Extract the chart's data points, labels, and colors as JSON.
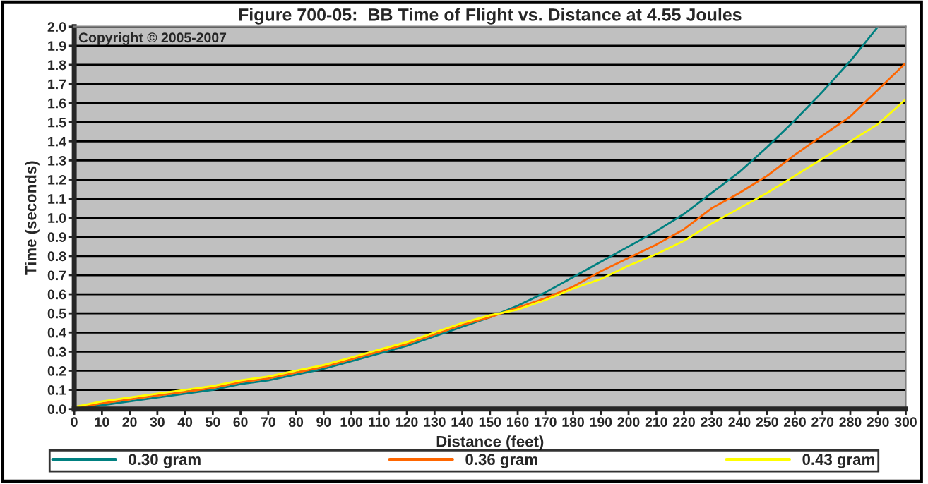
{
  "chart_data": {
    "type": "line",
    "title": "Figure 700-05:  BB Time of Flight vs. Distance at 4.55 Joules",
    "xlabel": "Distance (feet)",
    "ylabel": "Time (seconds)",
    "annotations": [
      "Copyright © 2005-2007"
    ],
    "x": [
      0,
      10,
      20,
      30,
      40,
      50,
      60,
      70,
      80,
      90,
      100,
      110,
      120,
      130,
      140,
      150,
      160,
      170,
      180,
      190,
      200,
      210,
      220,
      230,
      240,
      250,
      260,
      270,
      280,
      290,
      300
    ],
    "series": [
      {
        "name": "0.30 gram",
        "color": "#008080",
        "values": [
          0,
          0.02,
          0.04,
          0.06,
          0.08,
          0.1,
          0.13,
          0.15,
          0.18,
          0.21,
          0.25,
          0.29,
          0.33,
          0.38,
          0.43,
          0.48,
          0.54,
          0.61,
          0.69,
          0.77,
          0.85,
          0.93,
          1.02,
          1.13,
          1.24,
          1.37,
          1.51,
          1.66,
          1.82,
          2.0,
          null
        ]
      },
      {
        "name": "0.36 gram",
        "color": "#ff6600",
        "values": [
          0.005,
          0.03,
          0.05,
          0.07,
          0.09,
          0.11,
          0.14,
          0.16,
          0.19,
          0.22,
          0.26,
          0.3,
          0.34,
          0.39,
          0.44,
          0.48,
          0.53,
          0.58,
          0.64,
          0.72,
          0.79,
          0.86,
          0.94,
          1.05,
          1.13,
          1.22,
          1.33,
          1.43,
          1.53,
          1.67,
          1.81
        ]
      },
      {
        "name": "0.43 gram",
        "color": "#ffff00",
        "values": [
          0.01,
          0.04,
          0.06,
          0.08,
          0.1,
          0.12,
          0.15,
          0.17,
          0.2,
          0.23,
          0.27,
          0.31,
          0.35,
          0.4,
          0.45,
          0.49,
          0.52,
          0.57,
          0.63,
          0.68,
          0.75,
          0.81,
          0.88,
          0.97,
          1.05,
          1.13,
          1.22,
          1.31,
          1.4,
          1.49,
          1.62
        ]
      }
    ],
    "xlim": [
      0,
      300
    ],
    "xticks": [
      0,
      10,
      20,
      30,
      40,
      50,
      60,
      70,
      80,
      90,
      100,
      110,
      120,
      130,
      140,
      150,
      160,
      170,
      180,
      190,
      200,
      210,
      220,
      230,
      240,
      250,
      260,
      270,
      280,
      290,
      300
    ],
    "ylim": [
      0,
      2.0
    ],
    "yticks": [
      {
        "value": 0,
        "label": "0.0"
      },
      {
        "value": 0.1,
        "label": "0.1"
      },
      {
        "value": 0.2,
        "label": "0.2"
      },
      {
        "value": 0.3,
        "label": "0.3"
      },
      {
        "value": 0.4,
        "label": "0.4"
      },
      {
        "value": 0.5,
        "label": "0.5"
      },
      {
        "value": 0.6,
        "label": "0.6"
      },
      {
        "value": 0.7,
        "label": "0.7"
      },
      {
        "value": 0.8,
        "label": "0.8"
      },
      {
        "value": 0.9,
        "label": "0.9"
      },
      {
        "value": 1.0,
        "label": "1.0"
      },
      {
        "value": 1.1,
        "label": "1.1"
      },
      {
        "value": 1.2,
        "label": "1.2"
      },
      {
        "value": 1.3,
        "label": "1.3"
      },
      {
        "value": 1.4,
        "label": "1.4"
      },
      {
        "value": 1.5,
        "label": "1.5"
      },
      {
        "value": 1.6,
        "label": "1.6"
      },
      {
        "value": 1.7,
        "label": "1.7"
      },
      {
        "value": 1.8,
        "label": "1.8"
      },
      {
        "value": 1.9,
        "label": "1.9"
      },
      {
        "value": 2.0,
        "label": "2.0"
      }
    ],
    "grid": "y",
    "legend": "bottom",
    "marker": "none",
    "line_style": "solid"
  }
}
